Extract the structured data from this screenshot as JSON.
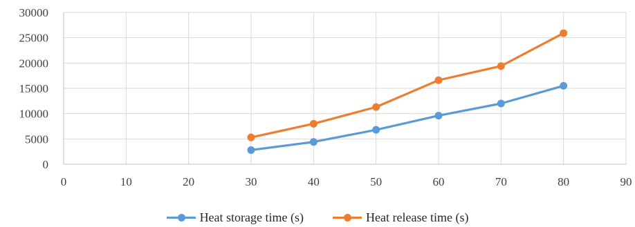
{
  "chart_data": {
    "type": "line",
    "title": "",
    "xlabel": "",
    "ylabel": "",
    "xlim": [
      0,
      90
    ],
    "ylim": [
      0,
      30000
    ],
    "x_ticks": [
      0,
      10,
      20,
      30,
      40,
      50,
      60,
      70,
      80,
      90
    ],
    "y_ticks": [
      0,
      5000,
      10000,
      15000,
      20000,
      25000,
      30000
    ],
    "x_tick_labels": [
      "0",
      "10",
      "20",
      "30",
      "40",
      "50",
      "60",
      "70",
      "80",
      "90"
    ],
    "y_tick_labels": [
      "0",
      "5000",
      "10000",
      "15000",
      "20000",
      "25000",
      "30000"
    ],
    "grid": true,
    "legend_position": "bottom",
    "series": [
      {
        "name": "Heat storage time (s)",
        "color": "#5B9BD5",
        "x": [
          30,
          40,
          50,
          60,
          70,
          80
        ],
        "values": [
          2800,
          4400,
          6800,
          9600,
          12000,
          15500
        ]
      },
      {
        "name": "Heat release time (s)",
        "color": "#ED7D31",
        "x": [
          30,
          40,
          50,
          60,
          70,
          80
        ],
        "values": [
          5300,
          8000,
          11300,
          16600,
          19400,
          25900
        ]
      }
    ]
  }
}
